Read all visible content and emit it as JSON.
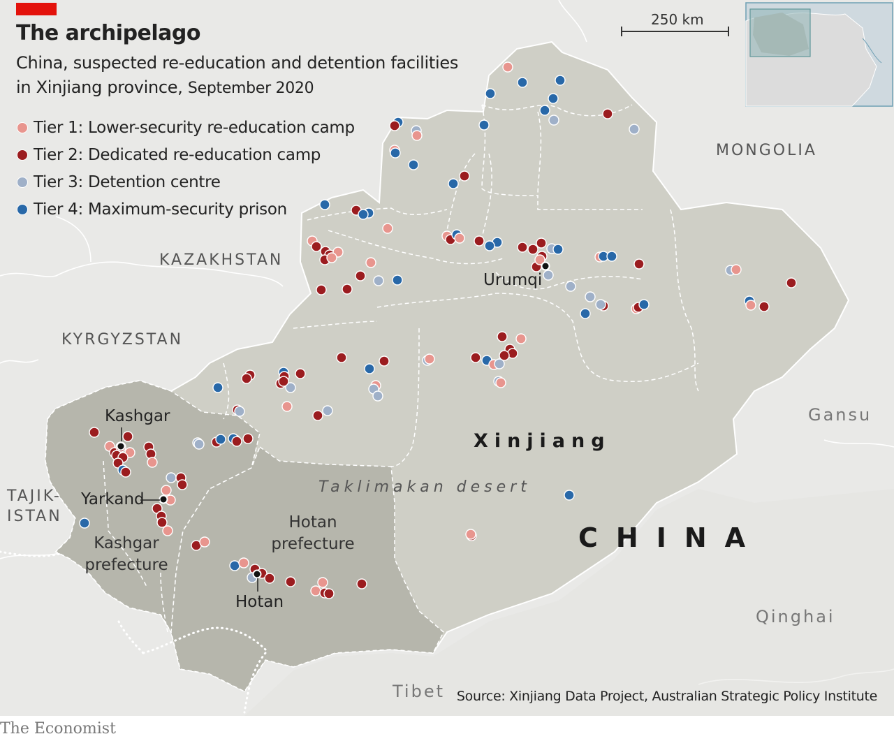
{
  "header": {
    "title": "The archipelago",
    "subtitle_line1": "China, suspected re-education and detention facilities",
    "subtitle_line2": "in Xinjiang province,",
    "subtitle_date": "September 2020"
  },
  "legend": [
    {
      "tier": "Tier 1:",
      "label": "Lower-security re-education camp",
      "color": "#e8958e"
    },
    {
      "tier": "Tier 2:",
      "label": "Dedicated re-education camp",
      "color": "#9b1c1f"
    },
    {
      "tier": "Tier 3:",
      "label": "Detention centre",
      "color": "#9fb0c8"
    },
    {
      "tier": "Tier 4:",
      "label": "Maximum-security prison",
      "color": "#2868a8"
    }
  ],
  "labels": {
    "kazakhstan": "KAZAKHSTAN",
    "kyrgyzstan": "KYRGYZSTAN",
    "tajikistan_1": "TAJIK-",
    "tajikistan_2": "ISTAN",
    "mongolia": "MONGOLIA",
    "gansu": "Gansu",
    "qinghai": "Qinghai",
    "tibet": "Tibet",
    "china": "CHINA",
    "xinjiang": "Xinjiang",
    "taklimakan": "Taklimakan desert",
    "hotan_pref_1": "Hotan",
    "hotan_pref_2": "prefecture",
    "kashgar_pref_1": "Kashgar",
    "kashgar_pref_2": "prefecture"
  },
  "cities": [
    {
      "name": "Urumqi"
    },
    {
      "name": "Kashgar"
    },
    {
      "name": "Yarkand"
    },
    {
      "name": "Hotan"
    }
  ],
  "scale_label": "250 km",
  "source": "Source: Xinjiang Data Project, Australian Strategic Policy Institute",
  "brand": "The Economist",
  "colors": {
    "background_land": "#e9e9e7",
    "xinjiang": "#cfcfc6",
    "highlighted_prefectures": "#b6b6ac",
    "water_lines": "#ffffff",
    "accent_red": "#e3120b"
  }
}
